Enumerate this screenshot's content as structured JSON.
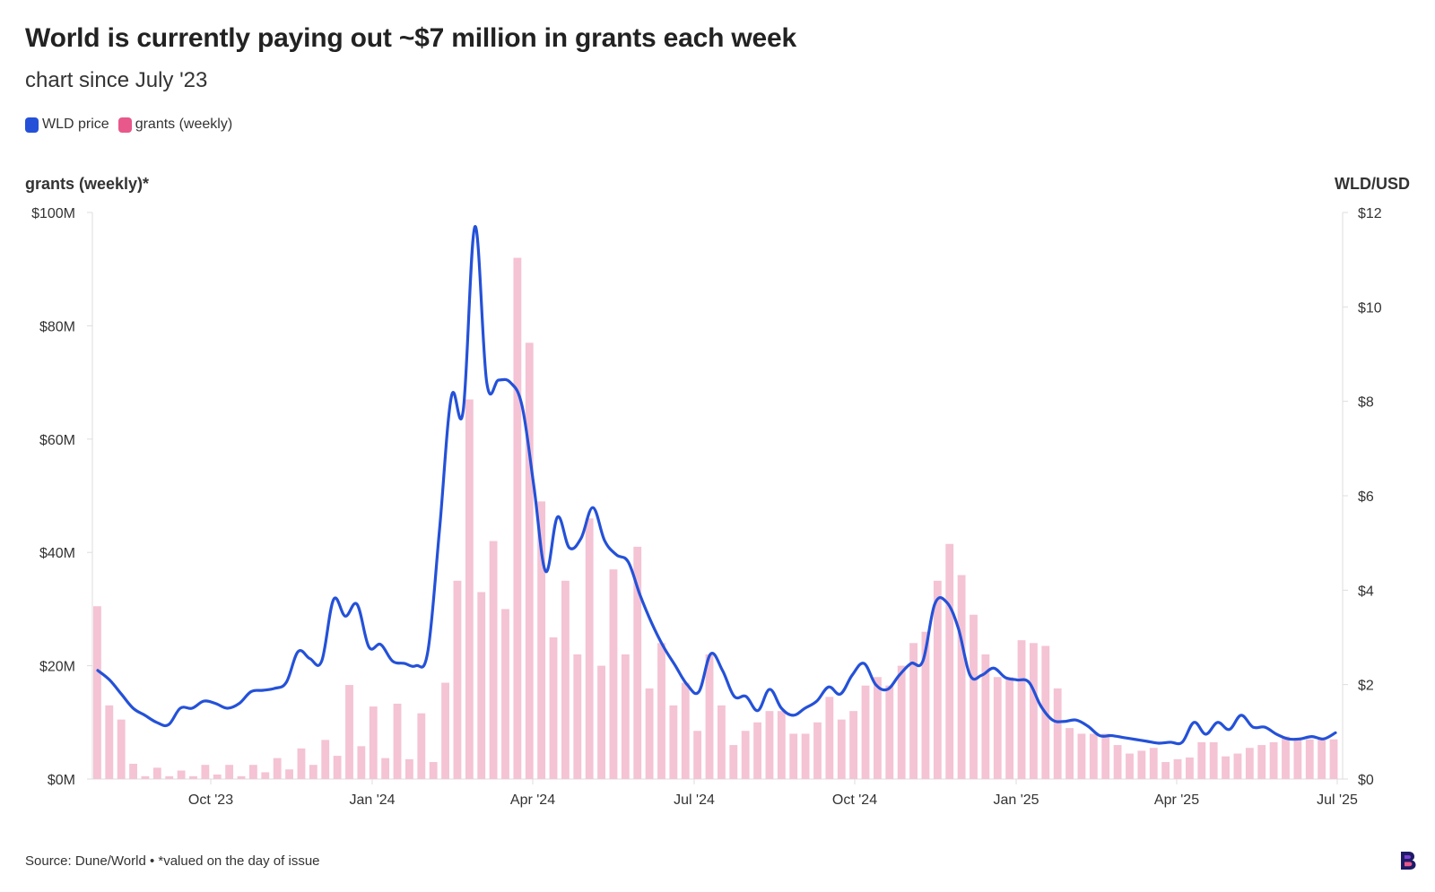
{
  "header": {
    "title": "World is currently paying out ~$7 million in grants each week",
    "subtitle": "chart since July '23"
  },
  "legend": {
    "items": [
      {
        "label": "WLD price",
        "color": "#2451d8"
      },
      {
        "label": "grants (weekly)",
        "color": "#e8588a"
      }
    ]
  },
  "axes": {
    "left_title": "grants (weekly)*",
    "right_title": "WLD/USD"
  },
  "footer": {
    "source": "Source: Dune/World • *valued on the day of issue"
  },
  "colors": {
    "bar": "#f4c3d4",
    "line": "#2451d8",
    "axis": "#dddddd",
    "tick_text": "#333333"
  },
  "chart_data": {
    "type": "bar+line",
    "x_ticks": [
      "Oct '23",
      "Jan '24",
      "Apr '24",
      "Jul '24",
      "Oct '24",
      "Jan '25",
      "Apr '25",
      "Jul '25"
    ],
    "y_left": {
      "label": "grants (weekly)*",
      "ticks": [
        "$0M",
        "$20M",
        "$40M",
        "$60M",
        "$80M",
        "$100M"
      ],
      "range": [
        0,
        100
      ]
    },
    "y_right": {
      "label": "WLD/USD",
      "ticks": [
        "$0",
        "$2",
        "$4",
        "$6",
        "$8",
        "$10",
        "$12"
      ],
      "range": [
        0,
        12
      ]
    },
    "series": [
      {
        "name": "grants (weekly)",
        "kind": "bar",
        "axis": "left",
        "unit": "$M",
        "values": [
          30.5,
          13,
          10.5,
          2.7,
          0.5,
          2,
          0.5,
          1.5,
          0.5,
          2.5,
          0.8,
          2.5,
          0.5,
          2.5,
          1.2,
          3.7,
          1.7,
          5.4,
          2.5,
          6.9,
          4.1,
          16.6,
          5.8,
          12.8,
          3.7,
          13.3,
          3.5,
          11.6,
          3,
          17,
          35,
          67,
          33,
          42,
          30,
          92,
          77,
          49,
          25,
          35,
          22,
          46,
          20,
          37,
          22,
          41,
          16,
          24,
          13,
          17,
          8.5,
          22,
          13,
          6,
          8.5,
          10,
          12,
          12,
          8,
          8,
          10,
          14.5,
          10.5,
          12,
          16.5,
          18,
          16.5,
          20,
          24,
          26,
          35,
          41.5,
          36,
          29,
          22,
          18,
          18,
          24.5,
          24,
          23.5,
          16,
          9,
          8,
          8,
          8,
          6,
          4.5,
          5,
          5.5,
          3,
          3.5,
          3.8,
          6.5,
          6.5,
          4,
          4.5,
          5.5,
          6,
          6.5,
          7.5,
          7,
          7,
          7,
          7
        ]
      },
      {
        "name": "WLD price",
        "kind": "line",
        "axis": "right",
        "unit": "USD",
        "values": [
          2.3,
          2.1,
          1.8,
          1.5,
          1.35,
          1.2,
          1.15,
          1.5,
          1.5,
          1.65,
          1.6,
          1.5,
          1.6,
          1.85,
          1.88,
          1.92,
          2.05,
          2.7,
          2.55,
          2.5,
          3.8,
          3.45,
          3.7,
          2.8,
          2.85,
          2.5,
          2.45,
          2.4,
          2.7,
          5.3,
          8.1,
          7.8,
          11.7,
          8.4,
          8.45,
          8.4,
          7.9,
          6.2,
          4.4,
          5.55,
          4.9,
          5.1,
          5.75,
          5.05,
          4.75,
          4.6,
          3.9,
          3.3,
          2.8,
          2.4,
          2,
          1.85,
          2.65,
          2.3,
          1.75,
          1.75,
          1.45,
          1.9,
          1.5,
          1.35,
          1.5,
          1.65,
          1.95,
          1.8,
          2.2,
          2.45,
          2,
          1.9,
          2.2,
          2.45,
          2.5,
          3.7,
          3.75,
          3.2,
          2.2,
          2.2,
          2.35,
          2.15,
          2.1,
          2.05,
          1.55,
          1.25,
          1.22,
          1.25,
          1.12,
          0.92,
          0.92,
          0.88,
          0.84,
          0.8,
          0.76,
          0.78,
          0.78,
          1.2,
          0.95,
          1.2,
          1.05,
          1.35,
          1.1,
          1.1,
          0.95,
          0.85,
          0.85,
          0.9,
          0.85,
          0.98
        ]
      }
    ],
    "grid": false,
    "legend_position": "top-left"
  }
}
